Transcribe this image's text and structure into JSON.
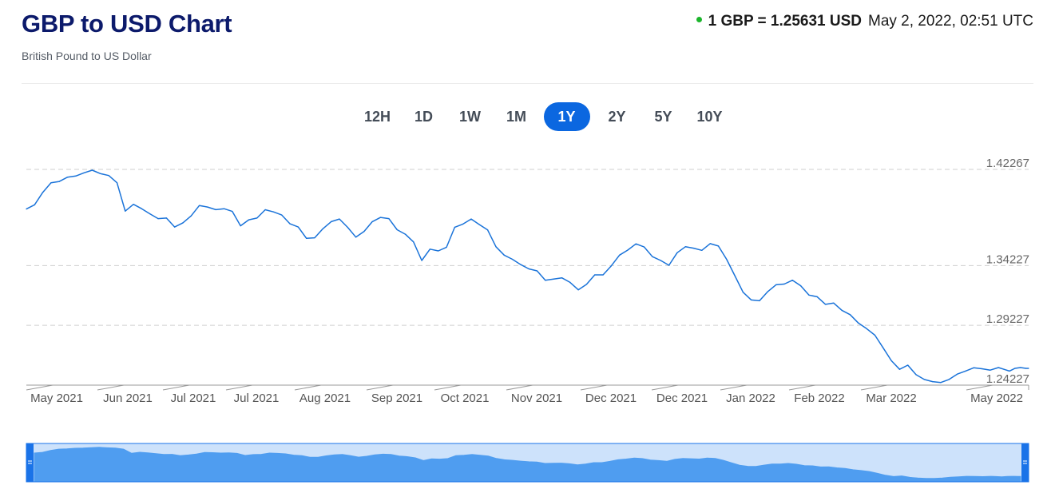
{
  "header": {
    "title": "GBP to USD Chart",
    "subtitle": "British Pound to US Dollar",
    "rate_text": "1 GBP = 1.25631 USD",
    "timestamp": "May 2, 2022, 02:51 UTC",
    "live_indicator_color": "#1bb52b"
  },
  "range_tabs": [
    {
      "label": "12H",
      "active": false
    },
    {
      "label": "1D",
      "active": false
    },
    {
      "label": "1W",
      "active": false
    },
    {
      "label": "1M",
      "active": false
    },
    {
      "label": "1Y",
      "active": true
    },
    {
      "label": "2Y",
      "active": false
    },
    {
      "label": "5Y",
      "active": false
    },
    {
      "label": "10Y",
      "active": false
    }
  ],
  "colors": {
    "line": "#1a73d9",
    "navigator_fill": "#4f9df0",
    "navigator_bg": "#cde2fb",
    "navigator_border": "#1a73e8",
    "active_tab": "#0b67e0",
    "title": "#0c1a6b"
  },
  "chart_data": {
    "type": "line",
    "y_ticks": [
      "1.42267",
      "1.34227",
      "1.29227",
      "1.24227"
    ],
    "x_tick_labels": [
      "May 2021",
      "Jun 2021",
      "Jul 2021",
      "Jul 2021",
      "Aug 2021",
      "Sep 2021",
      "Oct 2021",
      "Nov 2021",
      "Dec 2021",
      "Dec 2021",
      "Jan 2022",
      "Feb 2022",
      "Mar 2022",
      "May 2022"
    ],
    "ylim": [
      1.24227,
      1.42267
    ],
    "x_range_days": [
      0,
      365
    ],
    "grid": "horizontal-dashed",
    "series": [
      {
        "x": [
          0,
          3,
          6,
          9,
          12,
          15,
          18,
          21,
          24,
          27,
          30,
          33,
          36,
          39,
          42,
          45,
          48,
          51,
          54,
          57,
          60,
          63,
          66,
          69,
          72,
          75,
          78,
          81,
          84,
          87,
          90,
          93,
          96,
          99,
          102,
          105,
          108,
          111,
          114,
          117,
          120,
          123,
          126,
          129,
          132,
          135,
          138,
          141,
          144,
          147,
          150,
          153,
          156,
          159,
          162,
          165,
          168,
          171,
          174,
          177,
          180,
          183,
          186,
          189,
          192,
          195,
          198,
          201,
          204,
          207,
          210,
          213,
          216,
          219,
          222,
          225,
          228,
          231,
          234,
          237,
          240,
          243,
          246,
          249,
          252,
          255,
          258,
          261,
          264,
          267,
          270,
          273,
          276,
          279,
          282,
          285,
          288,
          291,
          294,
          297,
          300,
          303,
          306,
          309,
          312,
          315,
          318,
          321,
          324,
          327,
          330,
          333,
          336,
          339,
          342,
          345,
          348,
          351,
          354,
          356,
          358,
          360,
          362,
          364,
          365
        ],
        "values": [
          1.3895,
          1.3931,
          1.4035,
          1.4115,
          1.4126,
          1.4162,
          1.4171,
          1.4198,
          1.422,
          1.4191,
          1.4175,
          1.4115,
          1.3878,
          1.3935,
          1.3898,
          1.3855,
          1.3815,
          1.382,
          1.3745,
          1.378,
          1.3838,
          1.3925,
          1.3912,
          1.389,
          1.3898,
          1.3875,
          1.3755,
          1.3805,
          1.382,
          1.3889,
          1.3871,
          1.3845,
          1.3772,
          1.3745,
          1.365,
          1.3655,
          1.373,
          1.379,
          1.3812,
          1.3742,
          1.366,
          1.3708,
          1.379,
          1.3825,
          1.3815,
          1.3722,
          1.3685,
          1.362,
          1.3465,
          1.356,
          1.3545,
          1.3576,
          1.3743,
          1.377,
          1.3812,
          1.3765,
          1.372,
          1.358,
          1.351,
          1.3475,
          1.3431,
          1.3395,
          1.3378,
          1.33,
          1.331,
          1.332,
          1.3282,
          1.322,
          1.3265,
          1.3345,
          1.3345,
          1.342,
          1.351,
          1.3552,
          1.3604,
          1.3578,
          1.3497,
          1.3465,
          1.3425,
          1.353,
          1.358,
          1.3568,
          1.355,
          1.3606,
          1.3586,
          1.3475,
          1.3338,
          1.32,
          1.3135,
          1.3128,
          1.3205,
          1.3262,
          1.3268,
          1.33,
          1.3254,
          1.3176,
          1.3162,
          1.3098,
          1.3109,
          1.3048,
          1.3012,
          1.2942,
          1.2895,
          1.284,
          1.2735,
          1.2627,
          1.2555,
          1.259,
          1.251,
          1.247,
          1.2452,
          1.2445,
          1.247,
          1.2515,
          1.254,
          1.2568,
          1.256,
          1.2548,
          1.257,
          1.2555,
          1.254,
          1.2563,
          1.257,
          1.2563,
          1.2563
        ]
      }
    ]
  },
  "navigator": {
    "x_range_days": [
      0,
      365
    ],
    "window": [
      0,
      1
    ]
  }
}
